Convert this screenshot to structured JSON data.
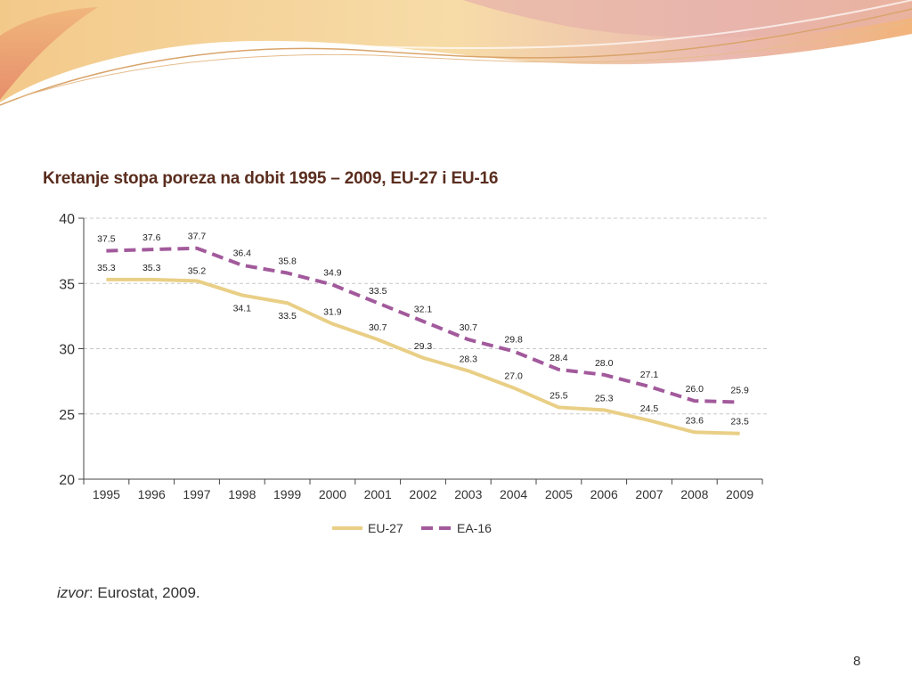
{
  "slide": {
    "title": "Kretanje stopa poreza na dobit 1995 – 2009, EU-27 i EU-16",
    "source_prefix": "izvor",
    "source_rest": ": Eurostat, 2009.",
    "page_number": "8"
  },
  "colors": {
    "eu27": "#e9cf86",
    "ea16": "#a25a9c",
    "grid": "#c8c8c8",
    "axis": "#444444",
    "title": "#5a2d1e"
  },
  "chart_data": {
    "type": "line",
    "title": "Kretanje stopa poreza na dobit 1995 – 2009, EU-27 i EU-16",
    "xlabel": "",
    "ylabel": "",
    "x": [
      "1995",
      "1996",
      "1997",
      "1998",
      "1999",
      "2000",
      "2001",
      "2002",
      "2003",
      "2004",
      "2005",
      "2006",
      "2007",
      "2008",
      "2009"
    ],
    "ylim": [
      20,
      40
    ],
    "yticks": [
      20,
      25,
      30,
      35,
      40
    ],
    "grid": true,
    "legend": "bottom-center",
    "series": [
      {
        "name": "EU-27",
        "style": "solid",
        "values": [
          35.3,
          35.3,
          35.2,
          34.1,
          33.5,
          31.9,
          30.7,
          29.3,
          28.3,
          27.0,
          25.5,
          25.3,
          24.5,
          23.6,
          23.5
        ],
        "labels": [
          "35.3",
          "35.3",
          "35.2",
          "34.1",
          "33.5",
          "31.9",
          "30.7",
          "29.3",
          "28.3",
          "27.0",
          "25.5",
          "25.3",
          "24.5",
          "23.6",
          "23.5"
        ]
      },
      {
        "name": "EA-16",
        "style": "dashed",
        "values": [
          37.5,
          37.6,
          37.7,
          36.4,
          35.8,
          34.9,
          33.5,
          32.1,
          30.7,
          29.8,
          28.4,
          28.0,
          27.1,
          26.0,
          25.9
        ],
        "labels": [
          "37.5",
          "37.6",
          "37.7",
          "36.4",
          "35.8",
          "34.9",
          "33.5",
          "32.1",
          "30.7",
          "29.8",
          "28.4",
          "28.0",
          "27.1",
          "26.0",
          "25.9"
        ]
      }
    ]
  }
}
